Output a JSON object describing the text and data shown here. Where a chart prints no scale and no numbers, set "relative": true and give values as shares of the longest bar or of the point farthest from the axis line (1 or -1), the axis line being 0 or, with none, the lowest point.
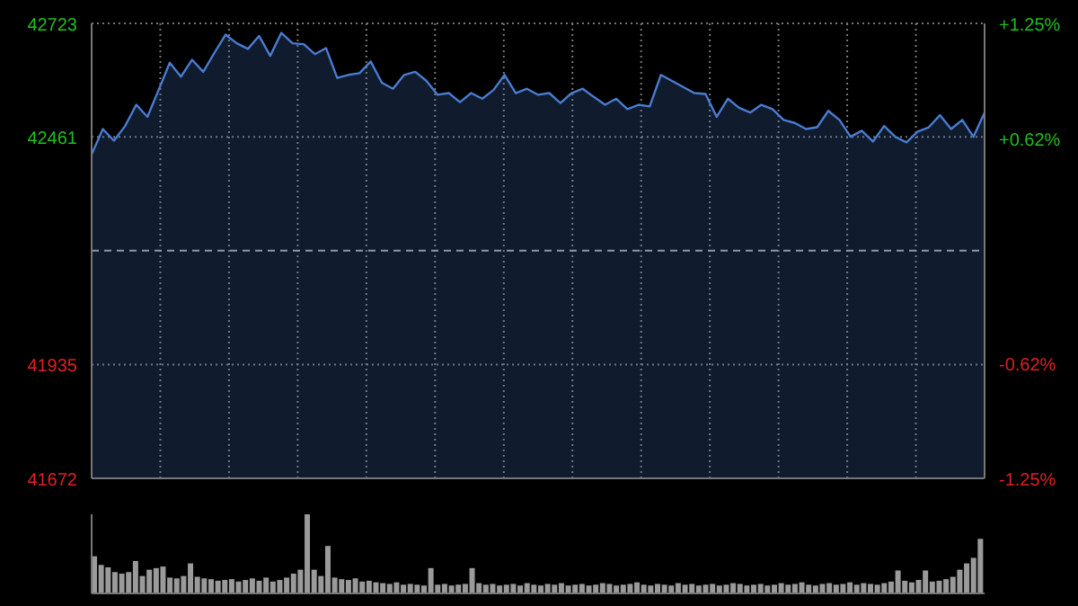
{
  "chart_data": [
    {
      "type": "area",
      "categories": [
        null,
        null,
        null,
        null,
        null,
        null,
        null,
        null,
        null,
        null,
        null,
        null,
        null,
        null,
        null,
        null,
        null,
        null,
        null,
        null,
        null,
        null,
        null,
        null,
        null,
        null,
        null,
        null,
        null,
        null,
        null,
        null,
        null,
        null,
        null,
        null,
        null,
        null,
        null,
        null,
        null,
        null,
        null,
        null,
        null,
        null,
        null,
        null,
        null,
        null,
        null,
        null,
        null,
        null,
        null,
        null,
        null,
        null,
        null,
        null,
        null,
        null,
        null,
        null,
        null,
        null,
        null,
        null,
        null,
        null,
        null,
        null,
        null,
        null,
        null,
        null,
        null,
        null,
        null,
        null,
        null
      ],
      "series": [
        {
          "color": "#4a7cd0",
          "values": [
            42420,
            42479,
            42452,
            42486,
            42535,
            42507,
            42569,
            42632,
            42600,
            42639,
            42611,
            42655,
            42697,
            42677,
            42664,
            42694,
            42648,
            42701,
            42677,
            42675,
            42652,
            42666,
            42597,
            42604,
            42608,
            42635,
            42586,
            42572,
            42604,
            42611,
            42590,
            42558,
            42562,
            42541,
            42562,
            42549,
            42569,
            42604,
            42562,
            42572,
            42558,
            42562,
            42539,
            42562,
            42572,
            42553,
            42535,
            42549,
            42525,
            42535,
            42531,
            42604,
            42590,
            42576,
            42562,
            42560,
            42507,
            42549,
            42528,
            42517,
            42535,
            42525,
            42500,
            42493,
            42479,
            42483,
            42521,
            42500,
            42461,
            42475,
            42450,
            42486,
            42461,
            42448,
            42473,
            42483,
            42511,
            42479,
            42500,
            42461,
            42517
          ]
        }
      ],
      "ylim": [
        41672,
        42723
      ],
      "yticks": [
        41672,
        41935,
        42461,
        42723
      ],
      "y2lim": [
        -1.25,
        1.25
      ],
      "y2ticks": [
        {
          "value": -1.25,
          "label": "-1.25%"
        },
        {
          "value": -0.62,
          "label": "-0.62%"
        },
        {
          "value": 0.62,
          "label": "+0.62%"
        },
        {
          "value": 1.25,
          "label": "+1.25%"
        }
      ],
      "ref_lines": [
        {
          "axis": "y",
          "value": 42198,
          "line_style": "dashed",
          "color": "#8899aa"
        }
      ],
      "grid": true,
      "tick_labels": "y"
    },
    {
      "type": "bar",
      "relative": true,
      "color": "#9a9a9a",
      "tick_labels": false,
      "categories": [
        null,
        null,
        null,
        null,
        null,
        null,
        null,
        null,
        null,
        null,
        null,
        null,
        null,
        null,
        null,
        null,
        null,
        null,
        null,
        null,
        null,
        null,
        null,
        null,
        null,
        null,
        null,
        null,
        null,
        null,
        null,
        null,
        null,
        null,
        null,
        null,
        null,
        null,
        null,
        null,
        null,
        null,
        null,
        null,
        null,
        null,
        null,
        null,
        null,
        null,
        null,
        null,
        null,
        null,
        null,
        null,
        null,
        null,
        null,
        null,
        null,
        null,
        null,
        null,
        null,
        null,
        null,
        null,
        null,
        null,
        null,
        null,
        null,
        null,
        null,
        null,
        null,
        null,
        null,
        null,
        null,
        null,
        null,
        null,
        null,
        null,
        null,
        null,
        null,
        null,
        null,
        null,
        null,
        null,
        null,
        null,
        null,
        null,
        null,
        null,
        null,
        null,
        null,
        null,
        null,
        null,
        null,
        null,
        null,
        null,
        null,
        null,
        null,
        null,
        null,
        null,
        null,
        null,
        null,
        null,
        null,
        null,
        null,
        null,
        null,
        null,
        null,
        null,
        null,
        null
      ],
      "values": [
        0.47,
        0.36,
        0.33,
        0.27,
        0.25,
        0.27,
        0.41,
        0.22,
        0.3,
        0.32,
        0.34,
        0.2,
        0.19,
        0.22,
        0.38,
        0.21,
        0.19,
        0.18,
        0.16,
        0.17,
        0.18,
        0.15,
        0.17,
        0.19,
        0.16,
        0.2,
        0.15,
        0.17,
        0.2,
        0.25,
        0.3,
        1,
        0.3,
        0.22,
        0.6,
        0.2,
        0.18,
        0.17,
        0.19,
        0.15,
        0.16,
        0.14,
        0.13,
        0.12,
        0.14,
        0.11,
        0.12,
        0.11,
        0.1,
        0.32,
        0.11,
        0.12,
        0.1,
        0.11,
        0.12,
        0.32,
        0.13,
        0.11,
        0.12,
        0.1,
        0.11,
        0.12,
        0.1,
        0.13,
        0.11,
        0.1,
        0.12,
        0.11,
        0.13,
        0.1,
        0.11,
        0.12,
        0.1,
        0.11,
        0.13,
        0.12,
        0.1,
        0.11,
        0.12,
        0.14,
        0.11,
        0.1,
        0.12,
        0.11,
        0.1,
        0.13,
        0.11,
        0.12,
        0.1,
        0.11,
        0.12,
        0.1,
        0.11,
        0.13,
        0.12,
        0.1,
        0.11,
        0.12,
        0.1,
        0.11,
        0.13,
        0.11,
        0.12,
        0.14,
        0.11,
        0.1,
        0.12,
        0.13,
        0.11,
        0.12,
        0.14,
        0.11,
        0.13,
        0.12,
        0.11,
        0.13,
        0.15,
        0.29,
        0.16,
        0.14,
        0.17,
        0.29,
        0.15,
        0.16,
        0.18,
        0.21,
        0.3,
        0.38,
        0.45,
        0.69
      ]
    }
  ]
}
